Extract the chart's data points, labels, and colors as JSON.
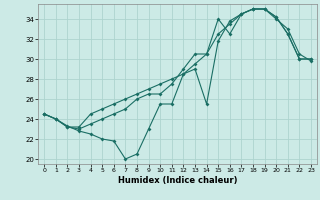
{
  "xlabel": "Humidex (Indice chaleur)",
  "bg_color": "#cceae6",
  "grid_color": "#add4cf",
  "line_color": "#1a6e64",
  "xlim": [
    -0.5,
    23.5
  ],
  "ylim": [
    19.5,
    35.5
  ],
  "yticks": [
    20,
    22,
    24,
    26,
    28,
    30,
    32,
    34
  ],
  "xticks": [
    0,
    1,
    2,
    3,
    4,
    5,
    6,
    7,
    8,
    9,
    10,
    11,
    12,
    13,
    14,
    15,
    16,
    17,
    18,
    19,
    20,
    21,
    22,
    23
  ],
  "series1_x": [
    0,
    1,
    2,
    3,
    4,
    5,
    6,
    7,
    8,
    9,
    10,
    11,
    12,
    13,
    14,
    15,
    16,
    17,
    18,
    19,
    20,
    21,
    22,
    23
  ],
  "series1_y": [
    24.5,
    24.0,
    23.3,
    22.8,
    22.5,
    22.0,
    21.8,
    20.0,
    20.5,
    23.0,
    25.5,
    25.5,
    28.5,
    29.0,
    25.5,
    31.8,
    33.8,
    34.5,
    35.0,
    35.0,
    34.2,
    32.5,
    30.0,
    30.0
  ],
  "series2_x": [
    0,
    1,
    2,
    3,
    4,
    5,
    6,
    7,
    8,
    9,
    10,
    11,
    12,
    13,
    14,
    15,
    16,
    17,
    18,
    19,
    20,
    21,
    22,
    23
  ],
  "series2_y": [
    24.5,
    24.0,
    23.2,
    23.2,
    24.5,
    25.0,
    25.5,
    26.0,
    26.5,
    27.0,
    27.5,
    28.0,
    28.5,
    29.5,
    30.5,
    32.5,
    33.5,
    34.5,
    35.0,
    35.0,
    34.0,
    33.0,
    30.5,
    29.8
  ],
  "series3_x": [
    0,
    1,
    2,
    3,
    4,
    5,
    6,
    7,
    8,
    9,
    10,
    11,
    12,
    13,
    14,
    15,
    16,
    17,
    18,
    19,
    20,
    21,
    22,
    23
  ],
  "series3_y": [
    24.5,
    24.0,
    23.2,
    23.0,
    23.5,
    24.0,
    24.5,
    25.0,
    26.0,
    26.5,
    26.5,
    27.5,
    29.0,
    30.5,
    30.5,
    34.0,
    32.5,
    34.5,
    35.0,
    35.0,
    34.2,
    32.5,
    30.0,
    30.0
  ]
}
